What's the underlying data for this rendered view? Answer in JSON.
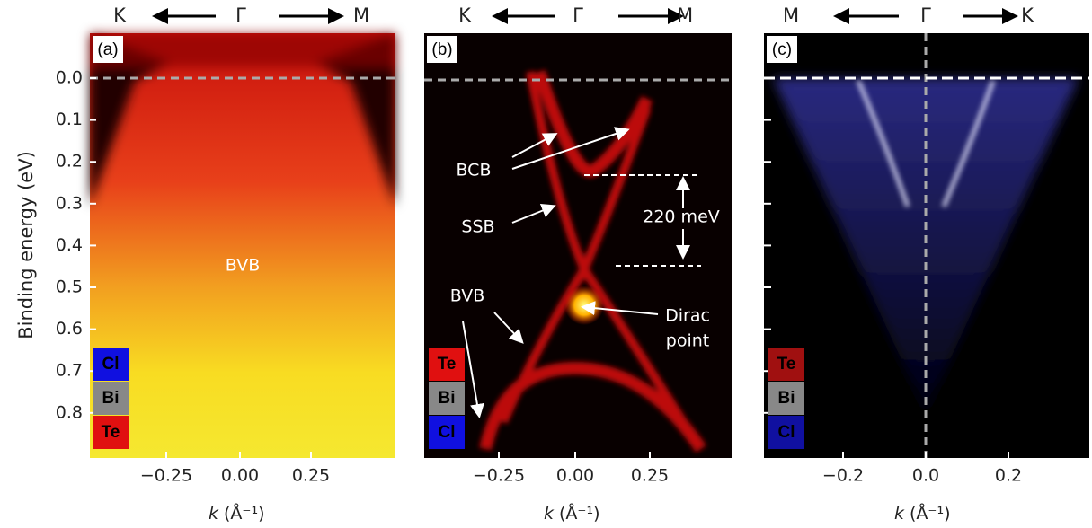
{
  "figure": {
    "y_axis_label": "Binding energy (eV)",
    "y_ticks": [
      "0.0",
      "0.1",
      "0.2",
      "0.3",
      "0.4",
      "0.5",
      "0.6",
      "0.7",
      "0.8"
    ],
    "panels": [
      {
        "label": "(a)",
        "direction": [
          "K",
          "Γ",
          "M"
        ],
        "x_ticks": [
          "−0.25",
          "0.00",
          "0.25"
        ],
        "x_label_symbol": "k",
        "x_label_unit": "(Å⁻¹)",
        "elements": [
          "Cl",
          "Bi",
          "Te"
        ],
        "annotations": [
          "BVB"
        ]
      },
      {
        "label": "(b)",
        "direction": [
          "K",
          "Γ",
          "M"
        ],
        "x_ticks": [
          "−0.25",
          "0.00",
          "0.25"
        ],
        "x_label_symbol": "k",
        "x_label_unit": "(Å⁻¹)",
        "elements": [
          "Te",
          "Bi",
          "Cl"
        ],
        "annotations": [
          "BCB",
          "SSB",
          "220 meV",
          "BVB",
          "Dirac",
          "point"
        ]
      },
      {
        "label": "(c)",
        "direction": [
          "M",
          "Γ",
          "K"
        ],
        "x_ticks": [
          "−0.2",
          "0.0",
          "0.2"
        ],
        "x_label_symbol": "k",
        "x_label_unit": "(Å⁻¹)",
        "elements": [
          "Te",
          "Bi",
          "Cl"
        ],
        "annotations": []
      }
    ]
  }
}
